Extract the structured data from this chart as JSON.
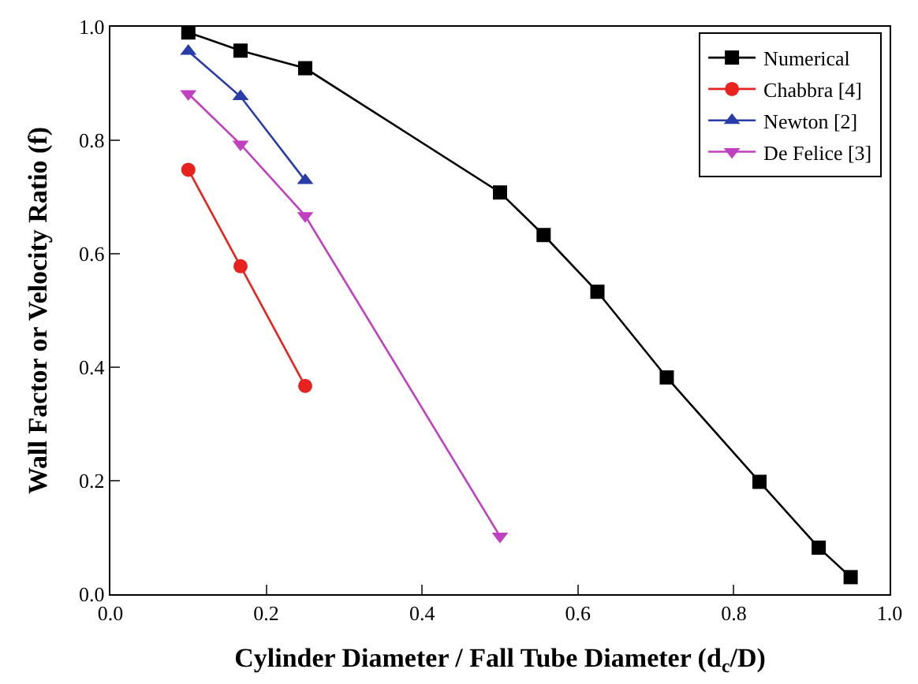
{
  "chart_data": {
    "type": "line",
    "xlabel": "Cylinder Diameter / Fall Tube Diameter (d$_{c}$/D)",
    "ylabel": "Wall Factor or Velocity Ratio (f)",
    "xlim": [
      0,
      1.0
    ],
    "ylim": [
      0,
      1.0
    ],
    "xticks": [
      {
        "value": 0,
        "label": "0.0"
      },
      {
        "value": 0.2,
        "label": "0.2"
      },
      {
        "value": 0.4,
        "label": "0.4"
      },
      {
        "value": 0.6,
        "label": "0.6"
      },
      {
        "value": 0.8,
        "label": "0.8"
      },
      {
        "value": 1.0,
        "label": "1.0"
      }
    ],
    "yticks": [
      {
        "value": 0,
        "label": "0.0"
      },
      {
        "value": 0.2,
        "label": "0.2"
      },
      {
        "value": 0.4,
        "label": "0.4"
      },
      {
        "value": 0.6,
        "label": "0.6"
      },
      {
        "value": 0.8,
        "label": "0.8"
      },
      {
        "value": 1.0,
        "label": "1.0"
      }
    ],
    "legend": "top right",
    "line_style": "solid",
    "series": [
      {
        "name": "Numerical",
        "color": "#000000",
        "marker": "square",
        "x": [
          0.1,
          0.167,
          0.25,
          0.5,
          0.556,
          0.625,
          0.714,
          0.833,
          0.909,
          0.95
        ],
        "values": [
          0.99,
          0.958,
          0.927,
          0.708,
          0.633,
          0.533,
          0.382,
          0.198,
          0.082,
          0.03
        ]
      },
      {
        "name": "Chabbra [4]",
        "color": "#e8231f",
        "marker": "circle",
        "x": [
          0.1,
          0.167,
          0.25
        ],
        "values": [
          0.748,
          0.578,
          0.367
        ]
      },
      {
        "name": "Newton [2]",
        "color": "#2a3ca8",
        "marker": "triangle",
        "x": [
          0.1,
          0.167,
          0.25
        ],
        "values": [
          0.957,
          0.877,
          0.729
        ]
      },
      {
        "name": "De Felice [3]",
        "color": "#c040c0",
        "marker": "triangle-down",
        "x": [
          0.1,
          0.167,
          0.25,
          0.5
        ],
        "values": [
          0.882,
          0.793,
          0.667,
          0.102
        ]
      }
    ]
  }
}
